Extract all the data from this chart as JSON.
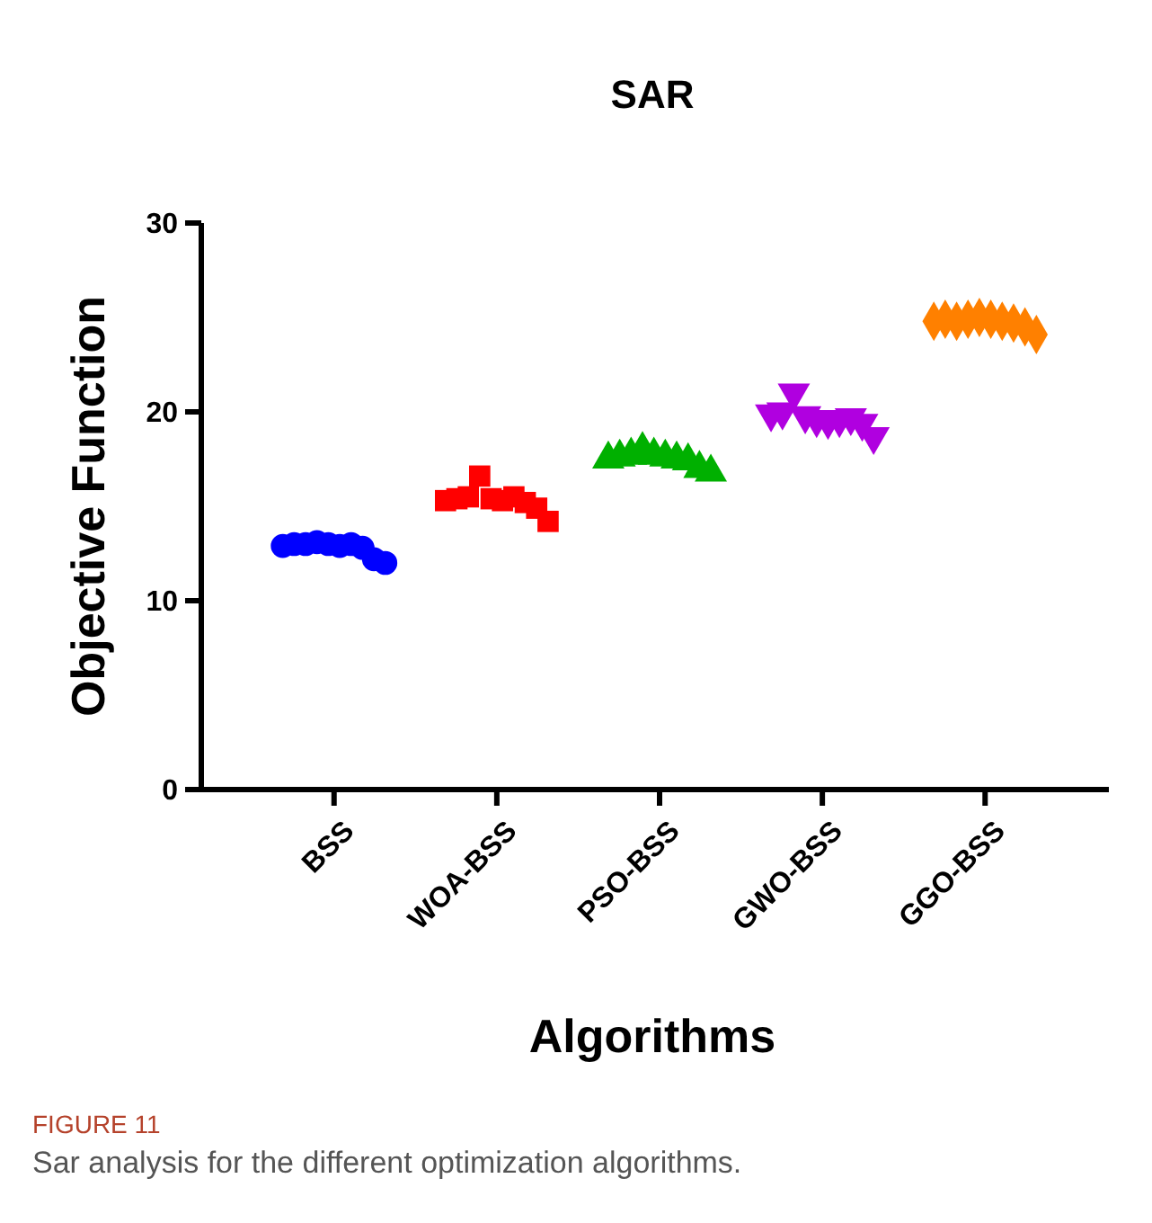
{
  "chart_data": {
    "type": "scatter",
    "title": "SAR",
    "xlabel": "Algorithms",
    "ylabel": "Objective Function",
    "categories": [
      "BSS",
      "WOA-BSS",
      "PSO-BSS",
      "GWO-BSS",
      "GGO-BSS"
    ],
    "ylim": [
      0,
      30
    ],
    "yticks": [
      0,
      10,
      20,
      30
    ],
    "grid": false,
    "annotations": [
      "FIGURE 11",
      "Sar analysis for the different optimization algorithms."
    ],
    "series": [
      {
        "color": "#0000ff",
        "marker": "circle",
        "x": [
          "BSS",
          "BSS",
          "BSS",
          "BSS",
          "BSS",
          "BSS",
          "BSS",
          "BSS",
          "BSS",
          "BSS"
        ],
        "values": [
          12.9,
          13.0,
          13.0,
          13.1,
          13.0,
          12.9,
          13.0,
          12.8,
          12.2,
          12.0
        ]
      },
      {
        "color": "#ff0000",
        "marker": "square",
        "x": [
          "WOA-BSS",
          "WOA-BSS",
          "WOA-BSS",
          "WOA-BSS",
          "WOA-BSS",
          "WOA-BSS",
          "WOA-BSS",
          "WOA-BSS",
          "WOA-BSS",
          "WOA-BSS"
        ],
        "values": [
          15.3,
          15.4,
          15.5,
          16.6,
          15.4,
          15.3,
          15.5,
          15.2,
          14.9,
          14.2
        ]
      },
      {
        "color": "#00b000",
        "marker": "triangle",
        "x": [
          "PSO-BSS",
          "PSO-BSS",
          "PSO-BSS",
          "PSO-BSS",
          "PSO-BSS",
          "PSO-BSS",
          "PSO-BSS",
          "PSO-BSS",
          "PSO-BSS",
          "PSO-BSS"
        ],
        "values": [
          17.5,
          17.6,
          17.7,
          18.0,
          17.7,
          17.6,
          17.5,
          17.4,
          17.0,
          16.8
        ]
      },
      {
        "color": "#b000e0",
        "marker": "triangle-down",
        "x": [
          "GWO-BSS",
          "GWO-BSS",
          "GWO-BSS",
          "GWO-BSS",
          "GWO-BSS",
          "GWO-BSS",
          "GWO-BSS",
          "GWO-BSS",
          "GWO-BSS",
          "GWO-BSS"
        ],
        "values": [
          19.9,
          20.0,
          21.0,
          19.8,
          19.6,
          19.5,
          19.6,
          19.7,
          19.4,
          18.7
        ]
      },
      {
        "color": "#ff8000",
        "marker": "diamond",
        "x": [
          "GGO-BSS",
          "GGO-BSS",
          "GGO-BSS",
          "GGO-BSS",
          "GGO-BSS",
          "GGO-BSS",
          "GGO-BSS",
          "GGO-BSS",
          "GGO-BSS",
          "GGO-BSS"
        ],
        "values": [
          24.8,
          24.9,
          24.8,
          24.9,
          25.0,
          24.9,
          24.8,
          24.7,
          24.5,
          24.1
        ]
      }
    ]
  }
}
